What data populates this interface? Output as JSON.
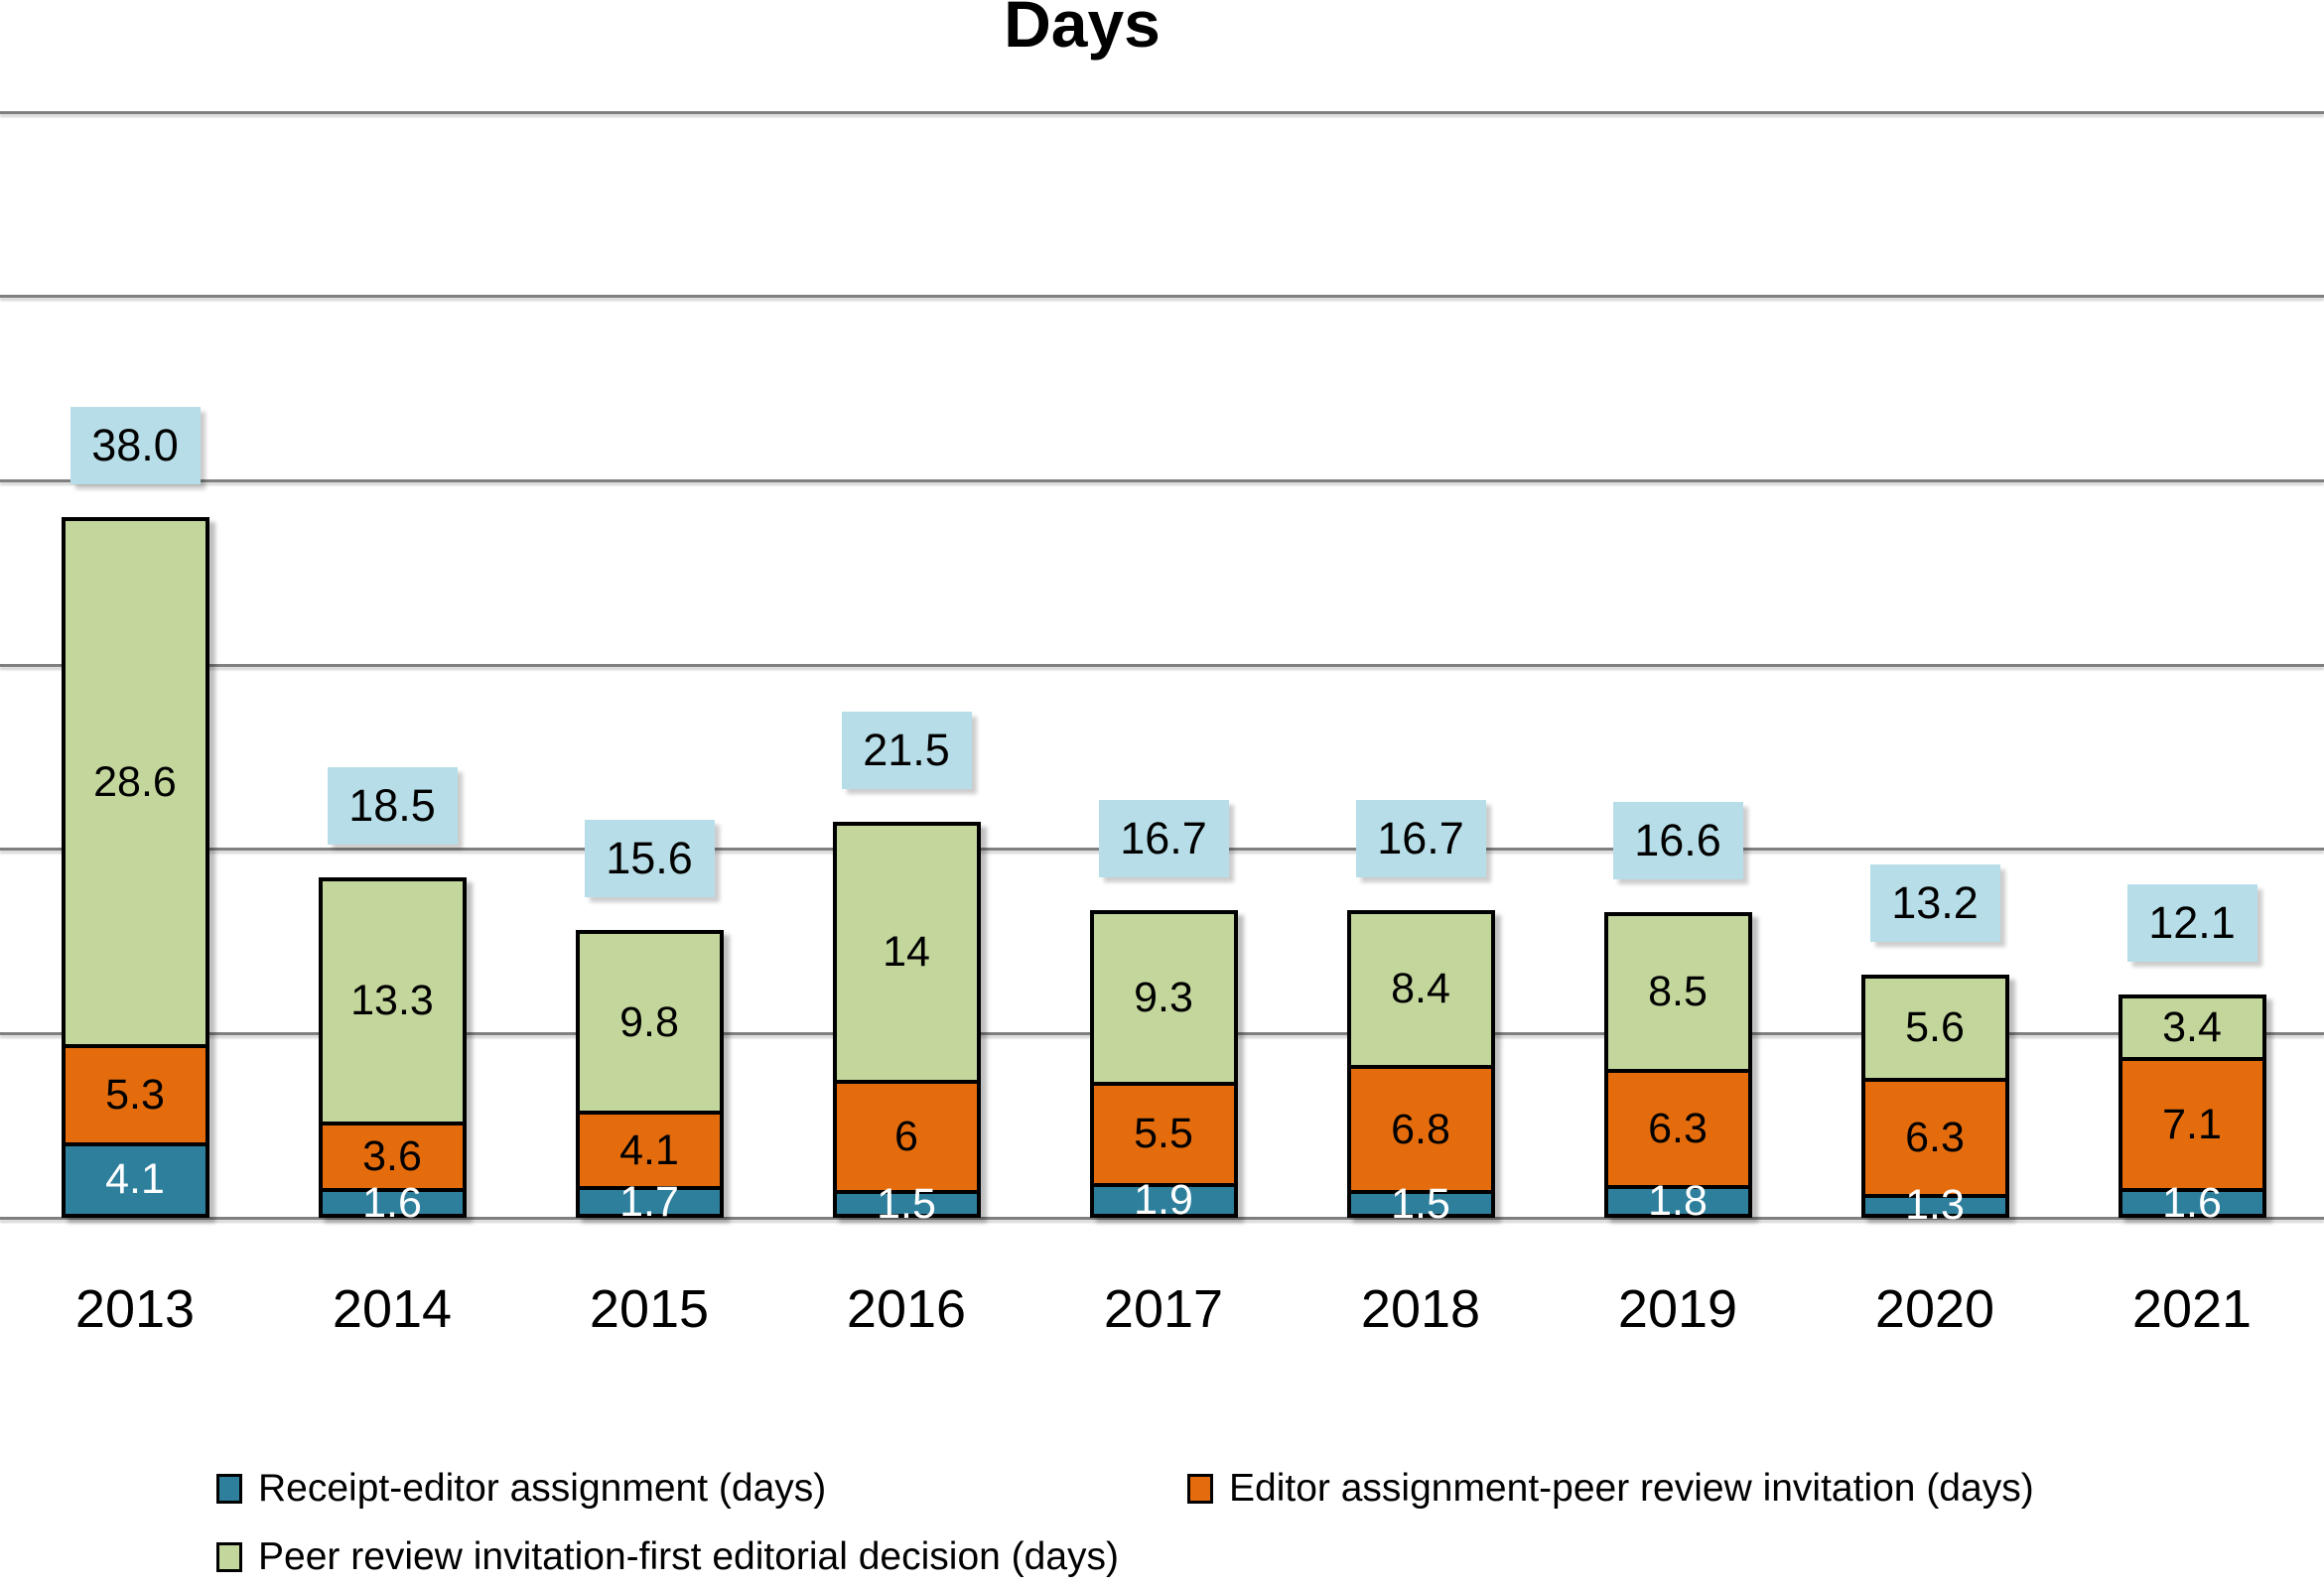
{
  "chart_data": {
    "type": "bar",
    "stacked": true,
    "title": "Days",
    "categories": [
      "2013",
      "2014",
      "2015",
      "2016",
      "2017",
      "2018",
      "2019",
      "2020",
      "2021"
    ],
    "series": [
      {
        "name": "Receipt-editor assignment (days)",
        "color": "#2E7F9C",
        "text_color": "#FFFFFF",
        "values": [
          4.1,
          1.6,
          1.7,
          1.5,
          1.9,
          1.5,
          1.8,
          1.3,
          1.6
        ],
        "labels": [
          "4.1",
          "1.6",
          "1.7",
          "1.5",
          "1.9",
          "1.5",
          "1.8",
          "1.3",
          "1.6"
        ]
      },
      {
        "name": "Editor assignment-peer review invitation (days)",
        "color": "#E56C0C",
        "text_color": "#000000",
        "values": [
          5.3,
          3.6,
          4.1,
          6,
          5.5,
          6.8,
          6.3,
          6.3,
          7.1
        ],
        "labels": [
          "5.3",
          "3.6",
          "4.1",
          "6",
          "5.5",
          "6.8",
          "6.3",
          "6.3",
          "7.1"
        ]
      },
      {
        "name": "Peer review invitation-first editorial decision (days)",
        "color": "#C3D69B",
        "text_color": "#000000",
        "values": [
          28.6,
          13.3,
          9.8,
          14,
          9.3,
          8.4,
          8.5,
          5.6,
          3.4
        ],
        "labels": [
          "28.6",
          "13.3",
          "9.8",
          "14",
          "9.3",
          "8.4",
          "8.5",
          "5.6",
          "3.4"
        ]
      }
    ],
    "totals": {
      "labels": [
        "38.0",
        "18.5",
        "15.6",
        "21.5",
        "16.7",
        "16.7",
        "16.6",
        "13.2",
        "12.1"
      ],
      "background": "#B7DEE8"
    },
    "ylim": [
      0,
      60
    ],
    "grid": {
      "step": 10,
      "color": "#7F7F7F",
      "visible": true
    },
    "legend_position": "bottom"
  }
}
